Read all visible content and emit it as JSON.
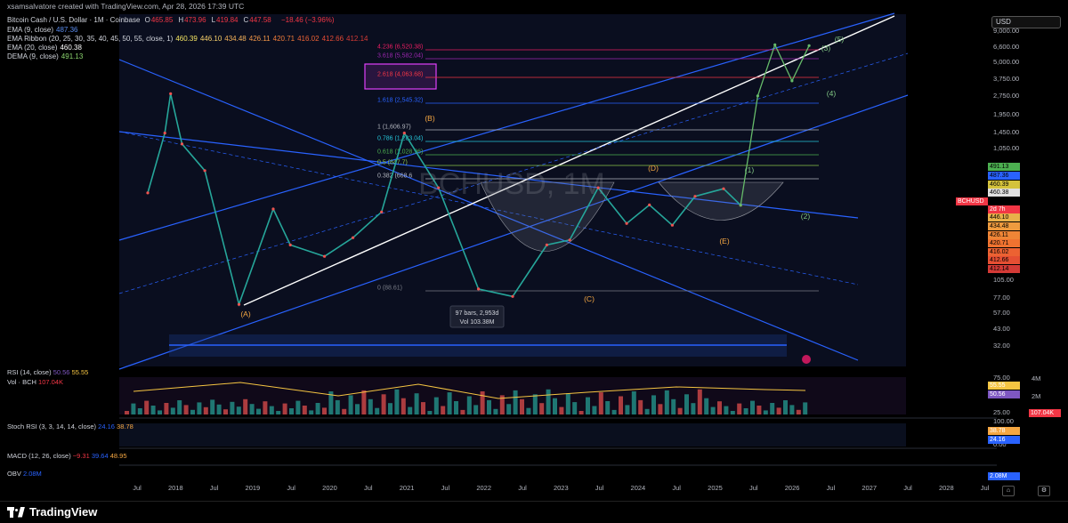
{
  "caption": "xsamsalvatore created with TradingView.com, Apr 28, 2026 17:39 UTC",
  "currency_button": "USD",
  "header": {
    "symbol": "Bitcoin Cash / U.S. Dollar · 1M · Coinbase",
    "ohlc": [
      {
        "k": "O",
        "v": "465.85"
      },
      {
        "k": "H",
        "v": "473.96"
      },
      {
        "k": "L",
        "v": "419.84"
      },
      {
        "k": "C",
        "v": "447.58"
      }
    ],
    "change": "−18.46 (−3.96%)",
    "indicators": [
      {
        "name": "EMA (9, close)",
        "values": [
          "487.36"
        ],
        "colors": [
          "#5b8def"
        ]
      },
      {
        "name": "EMA Ribbon (20, 25, 30, 35, 40, 45, 50, 55, close, 1)",
        "values": [
          "460.39",
          "446.10",
          "434.48",
          "426.11",
          "420.71",
          "416.02",
          "412.66",
          "412.14"
        ],
        "colors": [
          "#f5e663",
          "#f7d06b",
          "#f4b25a",
          "#f29648",
          "#f07c3a",
          "#ec6235",
          "#e64b35",
          "#d33a36"
        ]
      },
      {
        "name": "EMA (20, close)",
        "values": [
          "460.38"
        ],
        "colors": [
          "#ffffff"
        ]
      },
      {
        "name": "DEMA (9, close)",
        "values": [
          "491.13"
        ],
        "colors": [
          "#8bd46e"
        ]
      }
    ]
  },
  "price_axis": {
    "ticks": [
      "9,000.00",
      "6,600.00",
      "5,000.00",
      "3,750.00",
      "2,750.00",
      "1,950.00",
      "1,450.00",
      "1,050.00",
      "105.00",
      "77.00",
      "57.00",
      "43.00",
      "32.00"
    ],
    "tags": [
      {
        "label": "491.13",
        "color": "#4caf50"
      },
      {
        "label": "487.36",
        "color": "#2962ff"
      },
      {
        "label": "460.39",
        "color": "#d4c23c"
      },
      {
        "label": "460.38",
        "color": "#e0e0e0"
      },
      {
        "label": "BCHUSD",
        "color": "#f23645"
      },
      {
        "label": "447.58",
        "color": "#f23645"
      },
      {
        "label": "2d 7h",
        "color": "#f23645"
      },
      {
        "label": "446.10",
        "color": "#e8b04a"
      },
      {
        "label": "434.48",
        "color": "#ee9b3f"
      },
      {
        "label": "426.11",
        "color": "#ef8536"
      },
      {
        "label": "420.71",
        "color": "#ef7330"
      },
      {
        "label": "416.02",
        "color": "#ec6232"
      },
      {
        "label": "412.66",
        "color": "#e54f33"
      },
      {
        "label": "412.14",
        "color": "#d33a36"
      }
    ]
  },
  "time_axis": [
    "Jul",
    "2018",
    "Jul",
    "2019",
    "Jul",
    "2020",
    "Jul",
    "2021",
    "Jul",
    "2022",
    "Jul",
    "2023",
    "Jul",
    "2024",
    "Jul",
    "2025",
    "Jul",
    "2026",
    "Jul",
    "2027",
    "Jul",
    "2028",
    "Jul"
  ],
  "fib_levels": [
    {
      "label": "4.236 (6,520.38)",
      "color": "#e91e63"
    },
    {
      "label": "3.618 (5,582.04)",
      "color": "#9c27b0"
    },
    {
      "label": "2.618 (4,063.68)",
      "color": "#f23645"
    },
    {
      "label": "1.618 (2,545.32)",
      "color": "#2962ff"
    },
    {
      "label": "1 (1,606.97)",
      "color": "#b2b5be"
    },
    {
      "label": "0.786 (1,283.04)",
      "color": "#26c6da"
    },
    {
      "label": "0.618 (1,028.96)",
      "color": "#4caf50"
    },
    {
      "label": "0.5 (847.7)",
      "color": "#8bc34a"
    },
    {
      "label": "0.382 (668.6",
      "color": "#b2b5be"
    },
    {
      "label": "0 (88.61)",
      "color": "#787b86"
    }
  ],
  "wave_labels": {
    "orange": [
      "(A)",
      "(B)",
      "(C)",
      "(D)",
      "(E)"
    ],
    "green": [
      "(1)",
      "(2)",
      "(3)",
      "(4)",
      "(5)"
    ]
  },
  "measure_box": {
    "line1": "97 bars, 2,953d",
    "line2": "Vol 103.38M"
  },
  "watermark": "BCHUSD, 1M",
  "panes": {
    "rsi": {
      "label": "RSI (14, close)",
      "v1": "50.56",
      "v2": "55.55",
      "ticks": [
        "75.00",
        "25.00"
      ],
      "tags": [
        {
          "label": "55.55",
          "color": "#f5c542"
        },
        {
          "label": "50.56",
          "color": "#7e57c2"
        }
      ]
    },
    "vol": {
      "label": "Vol · BCH",
      "value": "107.04K",
      "ticks": [
        "4M",
        "2M"
      ],
      "tag": {
        "label": "107.04K",
        "color": "#f23645"
      }
    },
    "stoch": {
      "label": "Stoch RSI (3, 3, 14, 14, close)",
      "v1": "24.16",
      "v2": "38.78",
      "ticks": [
        "100.00",
        "0.00"
      ],
      "tags": [
        {
          "label": "38.78",
          "color": "#f5a742"
        },
        {
          "label": "24.16",
          "color": "#2962ff"
        }
      ]
    },
    "macd": {
      "label": "MACD (12, 26, close)",
      "v1": "−9.31",
      "v2": "39.64",
      "v3": "48.95"
    },
    "obv": {
      "label": "OBV",
      "value": "2.08M",
      "tag": {
        "label": "2.08M",
        "color": "#2962ff"
      }
    }
  },
  "brand": "TradingView",
  "chart_data": {
    "type": "line",
    "title": "Bitcoin Cash / U.S. Dollar · 1M · Coinbase",
    "y_scale": "log",
    "ylim": [
      30,
      11000
    ],
    "x_range": [
      "2017-03",
      "2028-09"
    ],
    "series": [
      {
        "name": "BCHUSD",
        "x": [
          "2017-08",
          "2017-11",
          "2017-12",
          "2018-02",
          "2018-06",
          "2018-12",
          "2019-06",
          "2019-09",
          "2020-03",
          "2020-08",
          "2021-01",
          "2021-05",
          "2021-11",
          "2022-06",
          "2022-12",
          "2023-06",
          "2023-10",
          "2024-03",
          "2024-08",
          "2024-12",
          "2025-04",
          "2025-08",
          "2026-01",
          "2026-04"
        ],
        "values": [
          550,
          1500,
          2900,
          1250,
          800,
          85,
          420,
          230,
          190,
          260,
          400,
          1500,
          600,
          110,
          97,
          230,
          250,
          600,
          330,
          450,
          320,
          520,
          590,
          447.58
        ]
      },
      {
        "name": "Projection",
        "x": [
          "2026-04",
          "2026-07",
          "2026-10",
          "2027-01",
          "2027-04"
        ],
        "values": [
          447.58,
          2800,
          6600,
          3600,
          6500
        ]
      }
    ],
    "annotations": [
      "(A)",
      "(B)",
      "(C)",
      "(D)",
      "(E)",
      "(1)",
      "(2)",
      "(3)",
      "(4)",
      "(5)"
    ]
  }
}
